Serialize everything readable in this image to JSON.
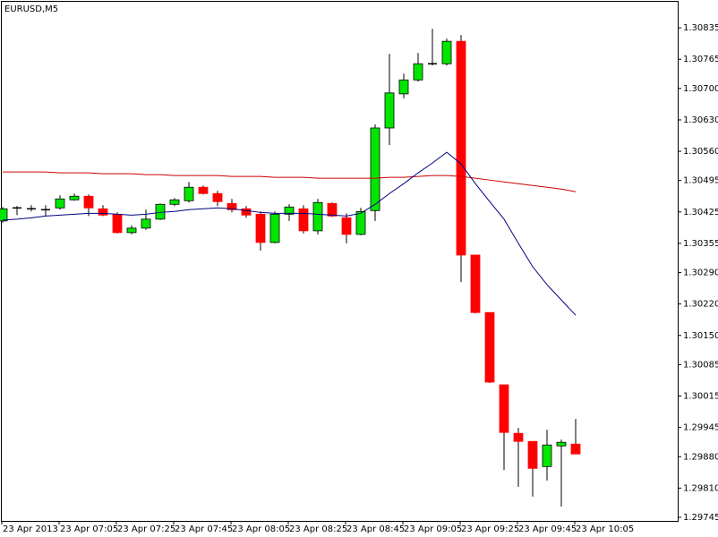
{
  "chart_data": {
    "type": "candlestick",
    "title": "EURUSD,M5",
    "categories": [
      "23 Apr 2013",
      null,
      null,
      null,
      "23 Apr 07:05",
      null,
      null,
      null,
      "23 Apr 07:25",
      null,
      null,
      null,
      "23 Apr 07:45",
      null,
      null,
      null,
      "23 Apr 08:05",
      null,
      null,
      null,
      "23 Apr 08:25",
      null,
      null,
      null,
      "23 Apr 08:45",
      null,
      null,
      null,
      "23 Apr 09:05",
      null,
      null,
      null,
      "23 Apr 09:25",
      null,
      null,
      null,
      "23 Apr 09:45",
      null,
      null,
      null,
      "23 Apr 10:05"
    ],
    "open": [
      1.30405,
      1.30434,
      1.30432,
      1.3043,
      1.30434,
      1.30452,
      1.3046,
      1.30432,
      1.3042,
      1.30379,
      1.30389,
      1.30409,
      1.30442,
      1.3045,
      1.3048,
      1.30466,
      1.30444,
      1.30432,
      1.3042,
      1.30357,
      1.3042,
      1.30432,
      1.30383,
      1.30444,
      1.30412,
      1.30375,
      1.30428,
      1.30612,
      1.30688,
      1.30719,
      1.30755,
      1.30755,
      1.30805,
      1.30329,
      1.30201,
      1.3004,
      1.29932,
      1.29914,
      1.29858,
      1.29904,
      1.29908
    ],
    "high": [
      1.30436,
      1.30438,
      1.3044,
      1.3044,
      1.30462,
      1.30466,
      1.30464,
      1.3044,
      1.30424,
      1.30395,
      1.3043,
      1.30444,
      1.30456,
      1.30492,
      1.30484,
      1.30472,
      1.30454,
      1.30438,
      1.30426,
      1.30426,
      1.30442,
      1.3044,
      1.30454,
      1.30446,
      1.30422,
      1.30434,
      1.3062,
      1.30777,
      1.30733,
      1.30779,
      1.30833,
      1.30811,
      1.30819,
      1.30329,
      1.30201,
      1.3004,
      1.29944,
      1.29914,
      1.2994,
      1.29918,
      1.29964
    ],
    "low": [
      1.30401,
      1.30418,
      1.30426,
      1.30416,
      1.3043,
      1.3045,
      1.30416,
      1.30416,
      1.30377,
      1.30375,
      1.30385,
      1.30407,
      1.30438,
      1.30446,
      1.30464,
      1.30438,
      1.30424,
      1.30412,
      1.30339,
      1.30355,
      1.30405,
      1.30377,
      1.30375,
      1.30414,
      1.30355,
      1.30373,
      1.30405,
      1.30574,
      1.30678,
      1.30715,
      1.30751,
      1.30751,
      1.30269,
      1.30199,
      1.30044,
      1.2985,
      1.29813,
      1.29791,
      1.29827,
      1.29769,
      1.29886
    ],
    "close": [
      1.30432,
      1.30434,
      1.30432,
      1.3043,
      1.30454,
      1.3046,
      1.30434,
      1.30418,
      1.30379,
      1.30389,
      1.30409,
      1.30442,
      1.30452,
      1.3048,
      1.30466,
      1.30448,
      1.3043,
      1.30418,
      1.30357,
      1.3042,
      1.30436,
      1.30383,
      1.30446,
      1.30416,
      1.30375,
      1.30426,
      1.30612,
      1.3069,
      1.30719,
      1.30755,
      1.30755,
      1.30805,
      1.30329,
      1.30201,
      1.30046,
      1.29934,
      1.29914,
      1.29854,
      1.29906,
      1.29912,
      1.29886
    ],
    "up_color": "#00e600",
    "down_color": "#ff0000",
    "wick_color": "#000000",
    "lines": [
      {
        "color": "#cc0000",
        "values": [
          1.30514,
          1.30514,
          1.30514,
          1.30514,
          1.30512,
          1.30512,
          1.30512,
          1.3051,
          1.3051,
          1.3051,
          1.30508,
          1.30508,
          1.30506,
          1.30506,
          1.30506,
          1.30506,
          1.30504,
          1.30504,
          1.30504,
          1.30502,
          1.30502,
          1.30502,
          1.305,
          1.305,
          1.305,
          1.305,
          1.305,
          1.30502,
          1.30502,
          1.30504,
          1.30506,
          1.30506,
          1.30504,
          1.305,
          1.30496,
          1.30492,
          1.30488,
          1.30484,
          1.3048,
          1.30476,
          1.3047
        ]
      },
      {
        "color": "#000080",
        "values": [
          1.30407,
          1.30409,
          1.30412,
          1.30416,
          1.30418,
          1.3042,
          1.30422,
          1.30422,
          1.3042,
          1.30418,
          1.3042,
          1.30424,
          1.30426,
          1.3043,
          1.30432,
          1.30434,
          1.30432,
          1.30428,
          1.30424,
          1.30422,
          1.30422,
          1.30422,
          1.3042,
          1.30418,
          1.30416,
          1.30422,
          1.30442,
          1.30466,
          1.30488,
          1.30512,
          1.30534,
          1.30558,
          1.30532,
          1.30488,
          1.30448,
          1.30409,
          1.30355,
          1.30303,
          1.30263,
          1.30229,
          1.30195
        ]
      }
    ],
    "ylim": [
      1.29737,
      1.30893
    ],
    "yticks": [
      1.30835,
      1.30765,
      {
        "value": 1.307,
        "label": "1.30700"
      },
      {
        "value": 1.3063,
        "label": "1.30630"
      },
      {
        "value": 1.3056,
        "label": "1.30560"
      },
      1.30495,
      1.30425,
      1.30355,
      {
        "value": 1.3029,
        "label": "1.30290"
      },
      {
        "value": 1.3022,
        "label": "1.30220"
      },
      {
        "value": 1.3015,
        "label": "1.30150"
      },
      1.30085,
      1.30015,
      1.29945,
      {
        "value": 1.2988,
        "label": "1.29880"
      },
      {
        "value": 1.2981,
        "label": "1.29810"
      },
      1.29745
    ],
    "grid": false
  }
}
